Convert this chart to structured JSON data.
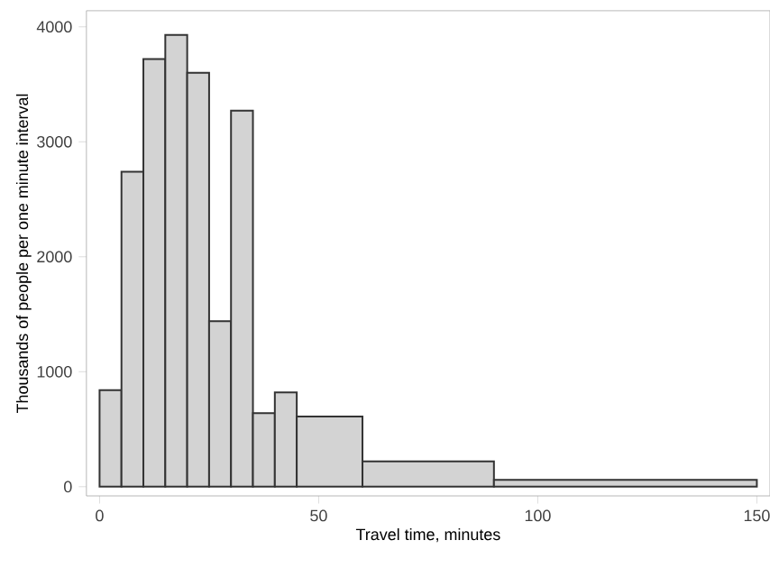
{
  "chart_data": {
    "type": "histogram",
    "xlabel": "Travel time, minutes",
    "ylabel": "Thousands of people per one minute interval",
    "bins": [
      0,
      5,
      10,
      15,
      20,
      25,
      30,
      35,
      40,
      45,
      60,
      90,
      150
    ],
    "values": [
      840,
      2740,
      3720,
      3930,
      3600,
      1440,
      3270,
      640,
      820,
      610,
      220,
      60
    ],
    "color": "#d3d3d3",
    "xlim": [
      -3,
      153
    ],
    "ylim": [
      -80,
      4140
    ],
    "xticks": [
      0,
      50,
      100,
      150
    ],
    "yticks": [
      0,
      1000,
      2000,
      3000,
      4000
    ],
    "grid": false
  }
}
